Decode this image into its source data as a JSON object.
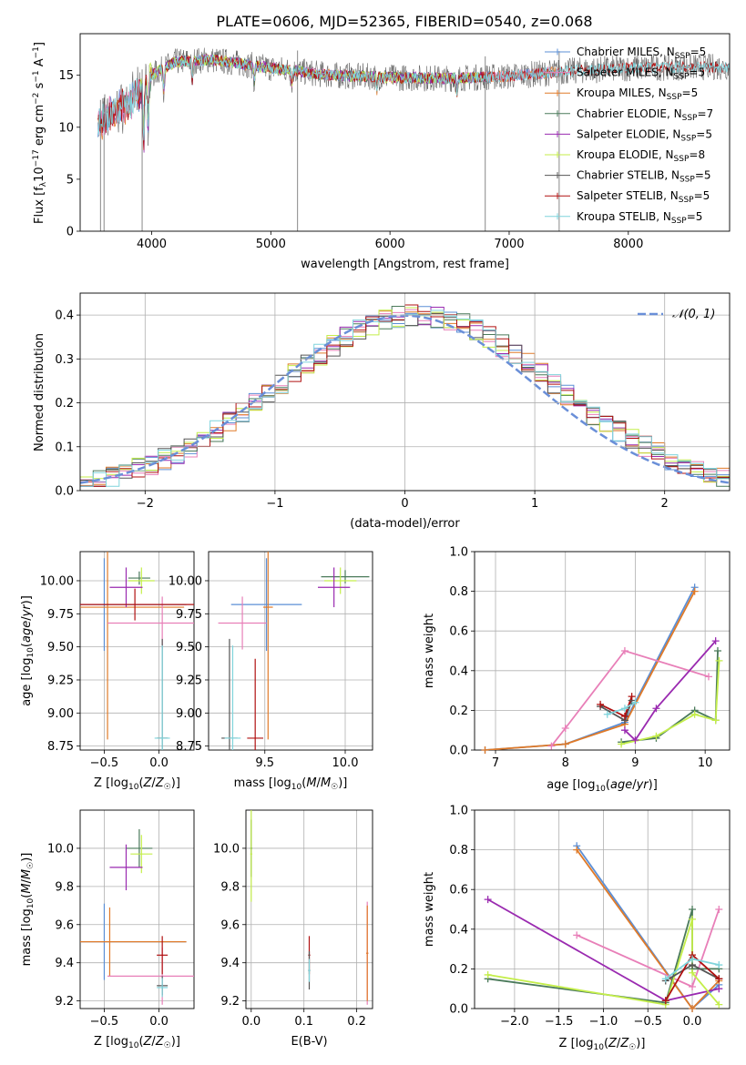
{
  "figure_title": "PLATE=0606, MJD=52365, FIBERID=0540, z=0.068",
  "colors": {
    "Chabrier MILES": "#5b8fd6",
    "Salpeter MILES": "#e87fb8",
    "Kroupa MILES": "#e07a28",
    "Chabrier ELODIE": "#4a7a5a",
    "Salpeter ELODIE": "#9a2ab0",
    "Kroupa ELODIE": "#c4ee4a",
    "Chabrier STELIB": "#555555",
    "Salpeter STELIB": "#b01010",
    "Kroupa STELIB": "#7fd4dc",
    "normal": "#6a8fd8",
    "grid": "#b0b0b0"
  },
  "chart_data": [
    {
      "id": "spectrum",
      "type": "line",
      "title": "PLATE=0606, MJD=52365, FIBERID=0540, z=0.068",
      "xlabel": "wavelength [Angstrom, rest frame]",
      "ylabel_main": "Flux [f",
      "ylabel_sub": "λ",
      "ylabel_rest": "10",
      "ylabel_exp1": "−17",
      "ylabel_mid": " erg cm",
      "ylabel_exp2": "−2",
      "ylabel_mid2": " s",
      "ylabel_exp3": "−1",
      "ylabel_end": " A",
      "ylabel_exp4": "−1",
      "ylabel_close": "]",
      "xlim": [
        3400,
        8850
      ],
      "ylim": [
        0,
        19
      ],
      "xticks": [
        4000,
        5000,
        6000,
        7000,
        8000
      ],
      "yticks": [
        0,
        5,
        10,
        15
      ],
      "grid": false,
      "legend_position": "top-right",
      "legend": [
        {
          "name": "Chabrier MILES",
          "nssp": "5"
        },
        {
          "name": "Salpeter MILES",
          "nssp": "5"
        },
        {
          "name": "Kroupa MILES",
          "nssp": "5"
        },
        {
          "name": "Chabrier ELODIE",
          "nssp": "7"
        },
        {
          "name": "Salpeter ELODIE",
          "nssp": "5"
        },
        {
          "name": "Kroupa ELODIE",
          "nssp": "8"
        },
        {
          "name": "Chabrier STELIB",
          "nssp": "5"
        },
        {
          "name": "Salpeter STELIB",
          "nssp": "5"
        },
        {
          "name": "Kroupa STELIB",
          "nssp": "5"
        }
      ],
      "legend_label_prefix": ", N",
      "legend_label_sub": "SSP",
      "legend_label_eq": "=",
      "continuum": [
        [
          3550,
          10.5
        ],
        [
          3700,
          11.5
        ],
        [
          3900,
          13.2
        ],
        [
          4000,
          15.0
        ],
        [
          4200,
          16.3
        ],
        [
          4500,
          16.5
        ],
        [
          5000,
          15.7
        ],
        [
          5500,
          15.0
        ],
        [
          6000,
          14.8
        ],
        [
          6500,
          14.7
        ],
        [
          7000,
          14.9
        ],
        [
          7500,
          15.4
        ],
        [
          8000,
          15.7
        ],
        [
          8500,
          15.8
        ],
        [
          8850,
          15.8
        ]
      ]
    },
    {
      "id": "residuals",
      "type": "line",
      "xlabel": "(data-model)/error",
      "ylabel": "Normed distribution",
      "xlim": [
        -2.5,
        2.5
      ],
      "ylim": [
        0,
        0.45
      ],
      "xticks": [
        -2,
        -1,
        0,
        1,
        2
      ],
      "yticks": [
        0.0,
        0.1,
        0.2,
        0.3,
        0.4
      ],
      "xtick_labels": [
        "−2",
        "−1",
        "0",
        "1",
        "2"
      ],
      "ytick_labels": [
        "0.0",
        "0.1",
        "0.2",
        "0.3",
        "0.4"
      ],
      "grid": true,
      "legend_position": "top-right",
      "legend_label": "𝒩(0, 1)",
      "normal_curve": {
        "mean": 0,
        "sigma": 1
      }
    },
    {
      "id": "age_vs_Z",
      "type": "scatter",
      "xlabel": "Z [log10(Z/Z☉)]",
      "ylabel": "age  [log10(age/yr)]",
      "xlim": [
        -0.72,
        0.32
      ],
      "ylim": [
        8.72,
        10.22
      ],
      "xticks": [
        -0.5,
        0.0
      ],
      "xtick_labels": [
        "−0.5",
        "0.0"
      ],
      "yticks": [
        8.75,
        9.0,
        9.25,
        9.5,
        9.75,
        10.0
      ],
      "ytick_labels": [
        "8.75",
        "9.00",
        "9.25",
        "9.50",
        "9.75",
        "10.00"
      ],
      "grid": true,
      "points": [
        {
          "series": "Chabrier MILES",
          "x": -0.5,
          "y": 9.82,
          "xerr": 0.75,
          "yerr": 0.35
        },
        {
          "series": "Kroupa MILES",
          "x": -0.47,
          "y": 9.8,
          "xerr": 0.7,
          "yerr": 1.0
        },
        {
          "series": "Salpeter MILES",
          "x": 0.03,
          "y": 9.68,
          "xerr": 0.5,
          "yerr": 0.2
        },
        {
          "series": "Chabrier ELODIE",
          "x": -0.18,
          "y": 10.02,
          "xerr": 0.1,
          "yerr": 0.05
        },
        {
          "series": "Kroupa ELODIE",
          "x": -0.16,
          "y": 10.0,
          "xerr": 0.12,
          "yerr": 0.1
        },
        {
          "series": "Salpeter ELODIE",
          "x": -0.3,
          "y": 9.95,
          "xerr": 0.15,
          "yerr": 0.15
        },
        {
          "series": "Salpeter STELIB",
          "x": -0.22,
          "y": 9.82,
          "xerr": 0.55,
          "yerr": 0.12
        },
        {
          "series": "Chabrier STELIB",
          "x": 0.03,
          "y": 8.81,
          "xerr": 0.05,
          "yerr": 0.75
        },
        {
          "series": "Kroupa STELIB",
          "x": 0.03,
          "y": 8.81,
          "xerr": 0.07,
          "yerr": 0.7
        }
      ]
    },
    {
      "id": "age_vs_mass",
      "type": "scatter",
      "xlabel": "mass [log10(M/M☉)]",
      "xlim": [
        9.15,
        10.17
      ],
      "ylim": [
        8.72,
        10.22
      ],
      "xticks": [
        9.5,
        10.0
      ],
      "xtick_labels": [
        "9.5",
        "10.0"
      ],
      "yticks": [
        8.75,
        9.0,
        9.25,
        9.5,
        9.75,
        10.0
      ],
      "ytick_labels": [
        "8.75",
        "9.00",
        "9.25",
        "9.50",
        "9.75",
        "10.00"
      ],
      "grid": true,
      "points": [
        {
          "series": "Chabrier MILES",
          "x": 9.51,
          "y": 9.82,
          "xerr": 0.22,
          "yerr": 0.35
        },
        {
          "series": "Kroupa MILES",
          "x": 9.52,
          "y": 9.8,
          "xerr": 0.03,
          "yerr": 1.0
        },
        {
          "series": "Salpeter MILES",
          "x": 9.36,
          "y": 9.68,
          "xerr": 0.15,
          "yerr": 0.2
        },
        {
          "series": "Chabrier ELODIE",
          "x": 10.0,
          "y": 10.03,
          "xerr": 0.15,
          "yerr": 0.05
        },
        {
          "series": "Kroupa ELODIE",
          "x": 9.97,
          "y": 10.0,
          "xerr": 0.1,
          "yerr": 0.1
        },
        {
          "series": "Salpeter ELODIE",
          "x": 9.93,
          "y": 9.95,
          "xerr": 0.1,
          "yerr": 0.15
        },
        {
          "series": "Salpeter STELIB",
          "x": 9.44,
          "y": 8.81,
          "xerr": 0.05,
          "yerr": 0.6
        },
        {
          "series": "Chabrier STELIB",
          "x": 9.28,
          "y": 8.81,
          "xerr": 0.05,
          "yerr": 0.75
        },
        {
          "series": "Kroupa STELIB",
          "x": 9.3,
          "y": 8.81,
          "xerr": 0.05,
          "yerr": 0.7
        }
      ]
    },
    {
      "id": "weight_vs_age",
      "type": "line",
      "xlabel": "age  [log10(age/yr)]",
      "ylabel": "mass weight",
      "xlim": [
        6.7,
        10.35
      ],
      "ylim": [
        0,
        1.0
      ],
      "xticks": [
        7,
        8,
        9,
        10
      ],
      "yticks": [
        0.0,
        0.2,
        0.4,
        0.6,
        0.8,
        1.0
      ],
      "ytick_labels": [
        "0.0",
        "0.2",
        "0.4",
        "0.6",
        "0.8",
        "1.0"
      ],
      "grid": true,
      "series": [
        {
          "name": "Chabrier MILES",
          "x": [
            6.85,
            8.0,
            8.85,
            9.85
          ],
          "y": [
            0.0,
            0.03,
            0.14,
            0.82
          ]
        },
        {
          "name": "Kroupa MILES",
          "x": [
            6.85,
            8.0,
            8.85,
            9.85
          ],
          "y": [
            0.0,
            0.03,
            0.13,
            0.8
          ]
        },
        {
          "name": "Salpeter MILES",
          "x": [
            7.8,
            8.0,
            8.85,
            10.05
          ],
          "y": [
            0.02,
            0.11,
            0.5,
            0.37
          ]
        },
        {
          "name": "Salpeter ELODIE",
          "x": [
            8.85,
            9.0,
            9.3,
            10.15
          ],
          "y": [
            0.1,
            0.05,
            0.21,
            0.55
          ]
        },
        {
          "name": "Chabrier ELODIE",
          "x": [
            8.8,
            9.3,
            9.85,
            10.15,
            10.18
          ],
          "y": [
            0.04,
            0.06,
            0.2,
            0.15,
            0.5
          ]
        },
        {
          "name": "Kroupa ELODIE",
          "x": [
            8.8,
            9.3,
            9.85,
            10.15,
            10.2
          ],
          "y": [
            0.03,
            0.07,
            0.18,
            0.15,
            0.45
          ]
        },
        {
          "name": "Chabrier STELIB",
          "x": [
            8.5,
            8.85,
            8.95
          ],
          "y": [
            0.22,
            0.15,
            0.25
          ]
        },
        {
          "name": "Salpeter STELIB",
          "x": [
            8.5,
            8.85,
            8.95
          ],
          "y": [
            0.23,
            0.17,
            0.27
          ]
        },
        {
          "name": "Kroupa STELIB",
          "x": [
            8.6,
            8.85,
            9.0
          ],
          "y": [
            0.18,
            0.21,
            0.24
          ]
        }
      ]
    },
    {
      "id": "mass_vs_Z",
      "type": "scatter",
      "xlabel": "Z [log10(Z/Z☉)]",
      "ylabel": "mass [log10(M/M☉)]",
      "xlim": [
        -0.72,
        0.32
      ],
      "ylim": [
        9.16,
        10.2
      ],
      "xticks": [
        -0.5,
        0.0
      ],
      "xtick_labels": [
        "−0.5",
        "0.0"
      ],
      "yticks": [
        9.2,
        9.4,
        9.6,
        9.8,
        10.0
      ],
      "ytick_labels": [
        "9.2",
        "9.4",
        "9.6",
        "9.8",
        "10.0"
      ],
      "grid": true,
      "points": [
        {
          "series": "Chabrier MILES",
          "x": -0.5,
          "y": 9.51,
          "xerr": 0.75,
          "yerr": 0.2
        },
        {
          "series": "Kroupa MILES",
          "x": -0.45,
          "y": 9.51,
          "xerr": 0.7,
          "yerr": 0.18
        },
        {
          "series": "Salpeter MILES",
          "x": 0.03,
          "y": 9.33,
          "xerr": 0.5,
          "yerr": 0.15
        },
        {
          "series": "Chabrier ELODIE",
          "x": -0.18,
          "y": 10.0,
          "xerr": 0.12,
          "yerr": 0.1
        },
        {
          "series": "Kroupa ELODIE",
          "x": -0.16,
          "y": 9.97,
          "xerr": 0.1,
          "yerr": 0.1
        },
        {
          "series": "Salpeter ELODIE",
          "x": -0.3,
          "y": 9.9,
          "xerr": 0.15,
          "yerr": 0.12
        },
        {
          "series": "Salpeter STELIB",
          "x": 0.03,
          "y": 9.44,
          "xerr": 0.05,
          "yerr": 0.1
        },
        {
          "series": "Chabrier STELIB",
          "x": 0.03,
          "y": 9.28,
          "xerr": 0.05,
          "yerr": 0.05
        },
        {
          "series": "Kroupa STELIB",
          "x": 0.03,
          "y": 9.27,
          "xerr": 0.05,
          "yerr": 0.05
        }
      ]
    },
    {
      "id": "mass_vs_ebv",
      "type": "scatter",
      "xlabel": "E(B-V)",
      "xlim": [
        -0.01,
        0.23
      ],
      "ylim": [
        9.16,
        10.2
      ],
      "xticks": [
        0.0,
        0.1,
        0.2
      ],
      "xtick_labels": [
        "0.0",
        "0.1",
        "0.2"
      ],
      "yticks": [
        9.2,
        9.4,
        9.6,
        9.8,
        10.0
      ],
      "ytick_labels": [
        "9.2",
        "9.4",
        "9.6",
        "9.8",
        "10.0"
      ],
      "grid": true,
      "points": [
        {
          "series": "Chabrier ELODIE",
          "x": 0.0,
          "y": 10.0,
          "xerr": 0.002,
          "yerr": 0.15
        },
        {
          "series": "Kroupa ELODIE",
          "x": 0.0,
          "y": 9.97,
          "xerr": 0.002,
          "yerr": 0.25
        },
        {
          "series": "Salpeter STELIB",
          "x": 0.11,
          "y": 9.44,
          "xerr": 0.002,
          "yerr": 0.1
        },
        {
          "series": "Chabrier STELIB",
          "x": 0.11,
          "y": 9.36,
          "xerr": 0.002,
          "yerr": 0.1
        },
        {
          "series": "Kroupa STELIB",
          "x": 0.11,
          "y": 9.36,
          "xerr": 0.002,
          "yerr": 0.06
        },
        {
          "series": "Salpeter MILES",
          "x": 0.22,
          "y": 9.45,
          "xerr": 0.002,
          "yerr": 0.27
        },
        {
          "series": "Kroupa MILES",
          "x": 0.22,
          "y": 9.45,
          "xerr": 0.002,
          "yerr": 0.25
        }
      ]
    },
    {
      "id": "weight_vs_Z",
      "type": "line",
      "xlabel": "Z [log10(Z/Z☉)]",
      "ylabel": "mass weight",
      "xlim": [
        -2.45,
        0.42
      ],
      "ylim": [
        0,
        1.0
      ],
      "xticks": [
        -2.0,
        -1.5,
        -1.0,
        -0.5,
        0.0
      ],
      "xtick_labels": [
        "−2.0",
        "−1.5",
        "−1.0",
        "−0.5",
        "0.0"
      ],
      "yticks": [
        0.0,
        0.2,
        0.4,
        0.6,
        0.8,
        1.0
      ],
      "ytick_labels": [
        "0.0",
        "0.2",
        "0.4",
        "0.6",
        "0.8",
        "1.0"
      ],
      "grid": true,
      "series": [
        {
          "name": "Chabrier MILES",
          "x": [
            -1.3,
            0.0,
            0.3
          ],
          "y": [
            0.82,
            0.0,
            0.12
          ]
        },
        {
          "name": "Kroupa MILES",
          "x": [
            -1.3,
            0.0,
            0.3
          ],
          "y": [
            0.8,
            0.0,
            0.14
          ]
        },
        {
          "name": "Salpeter MILES",
          "x": [
            -1.3,
            0.0,
            0.3
          ],
          "y": [
            0.37,
            0.11,
            0.5
          ]
        },
        {
          "name": "Salpeter ELODIE",
          "x": [
            -2.3,
            -0.3,
            0.3
          ],
          "y": [
            0.55,
            0.04,
            0.1
          ]
        },
        {
          "name": "Chabrier ELODIE",
          "x": [
            -2.3,
            -0.3,
            0.0,
            0.0,
            0.3
          ],
          "y": [
            0.15,
            0.03,
            0.5,
            0.2,
            0.2
          ]
        },
        {
          "name": "Kroupa ELODIE",
          "x": [
            -2.3,
            -0.3,
            0.0,
            0.0,
            0.3
          ],
          "y": [
            0.17,
            0.02,
            0.45,
            0.18,
            0.02
          ]
        },
        {
          "name": "Chabrier STELIB",
          "x": [
            -0.3,
            0.0,
            0.3
          ],
          "y": [
            0.14,
            0.22,
            0.15
          ]
        },
        {
          "name": "Salpeter STELIB",
          "x": [
            -0.3,
            0.0,
            0.3
          ],
          "y": [
            0.04,
            0.27,
            0.15
          ]
        },
        {
          "name": "Kroupa STELIB",
          "x": [
            -0.3,
            0.0,
            0.3
          ],
          "y": [
            0.15,
            0.25,
            0.22
          ]
        }
      ]
    }
  ]
}
